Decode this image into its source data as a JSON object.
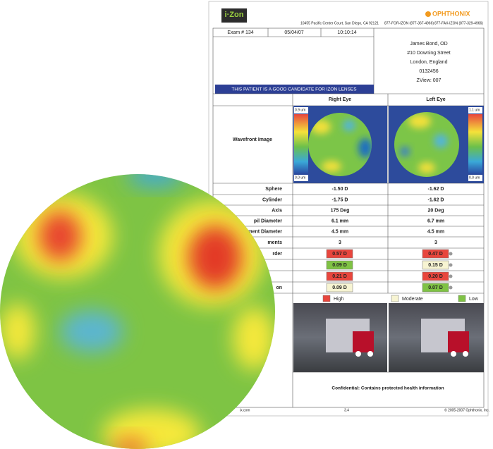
{
  "header": {
    "logo": "i·Zon",
    "address": "10455 Pacific Center Court, San Diego, CA 92121",
    "phone": "877-FOR-IZON (877-367-4966)",
    "fax": "877-FAX-IZON (877-329-4966)",
    "brand": "OPHTHONIX"
  },
  "exam": [
    "Exam # 134",
    "05/04/07",
    "10:10:14"
  ],
  "doctor": [
    "James Bond, OD",
    "#10 Downing Street",
    "London, England",
    "0132456",
    "ZView: 007"
  ],
  "banner": "THIS PATIENT IS A GOOD CANDIDATE FOR IZON LENSES",
  "eyes": [
    "Right Eye",
    "Left Eye"
  ],
  "wavefront": {
    "label": "Wavefront Image",
    "right_scale": [
      "0.9 um",
      "0.0 um"
    ],
    "left_scale": [
      "1.1 um",
      "0.0 um"
    ]
  },
  "rows": [
    {
      "label": "Sphere",
      "right": "-1.50 D",
      "left": "-1.62 D"
    },
    {
      "label": "Cylinder",
      "right": "-1.75 D",
      "left": "-1.62 D"
    },
    {
      "label": "Axis",
      "right": "175 Deg",
      "left": "20 Deg"
    },
    {
      "label": "pil Diameter",
      "right": "6.1 mm",
      "left": "6.7 mm"
    },
    {
      "label": "ment Diameter",
      "right": "4.5 mm",
      "left": "4.5 mm"
    },
    {
      "label": "ments",
      "right": "3",
      "left": "3"
    }
  ],
  "graded_rows": [
    {
      "label": "rder",
      "right": {
        "text": "0.57 D",
        "color": "#e8463d"
      },
      "left": {
        "text": "0.47 D",
        "color": "#e8463d"
      }
    },
    {
      "label": "",
      "right": {
        "text": "0.09 D",
        "color": "#7fc244"
      },
      "left": {
        "text": "0.15 D",
        "color": "#f7f4d2"
      }
    },
    {
      "label": "",
      "right": {
        "text": "0.21 D",
        "color": "#e8463d"
      },
      "left": {
        "text": "0.20 D",
        "color": "#e8463d"
      }
    },
    {
      "label": "on",
      "right": {
        "text": "0.09 D",
        "color": "#f7f4d2"
      },
      "left": {
        "text": "0.07 D",
        "color": "#7fc244"
      }
    }
  ],
  "legend": [
    {
      "text": "High",
      "color": "#e8463d"
    },
    {
      "text": "Moderate",
      "color": "#f7f4d2"
    },
    {
      "text": "Low",
      "color": "#7fc244"
    }
  ],
  "confidential": "Confidential: Contains protected health information",
  "footer": [
    "ix.com",
    "3.4",
    "© 2005-2007 Ophthonix, Inc."
  ]
}
